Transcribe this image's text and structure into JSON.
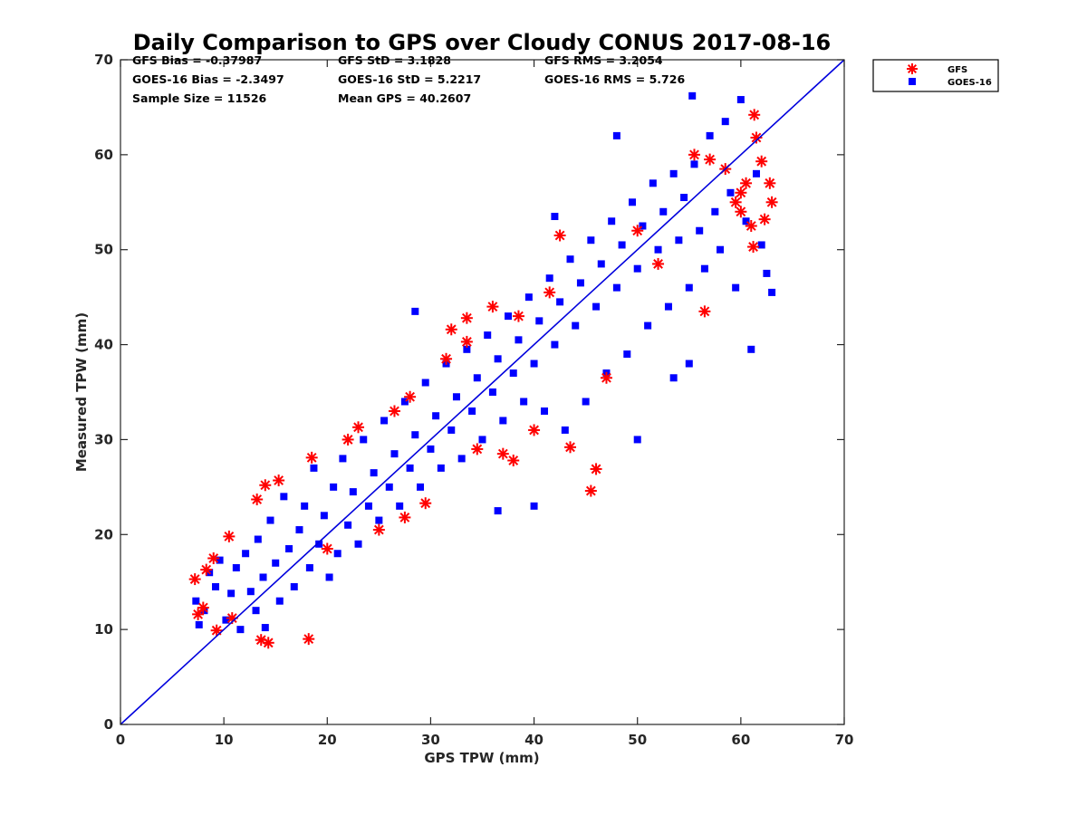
{
  "chart_data": {
    "type": "scatter",
    "title": "Daily Comparison to GPS over Cloudy CONUS 2017-08-16",
    "xlabel": "GPS TPW (mm)",
    "ylabel": "Measured TPW (mm)",
    "xlim": [
      0,
      70
    ],
    "ylim": [
      0,
      70
    ],
    "xticks": [
      "0",
      "10",
      "20",
      "30",
      "40",
      "50",
      "60",
      "70"
    ],
    "yticks": [
      "0",
      "10",
      "20",
      "30",
      "40",
      "50",
      "60",
      "70"
    ],
    "grid": false,
    "legend_position": "top-right outside",
    "stats": [
      [
        "GFS Bias = -0.37987",
        "GFS StD = 3.1828",
        "GFS RMS = 3.2054"
      ],
      [
        "GOES-16 Bias = -2.3497",
        "GOES-16 StD = 5.2217",
        "GOES-16 RMS = 5.726"
      ],
      [
        "Sample Size = 11526",
        "Mean GPS = 40.2607",
        ""
      ]
    ],
    "reference_line": {
      "x": [
        0,
        70
      ],
      "y": [
        0,
        70
      ],
      "color": "#0000dd",
      "label": ""
    },
    "series": [
      {
        "name": "GFS",
        "marker": "asterisk",
        "color": "#ff0000",
        "points": [
          [
            7.2,
            15.3
          ],
          [
            7.5,
            11.6
          ],
          [
            8.0,
            12.3
          ],
          [
            8.3,
            16.3
          ],
          [
            9.0,
            17.5
          ],
          [
            9.3,
            9.9
          ],
          [
            10.5,
            19.8
          ],
          [
            10.8,
            11.2
          ],
          [
            13.2,
            23.7
          ],
          [
            13.6,
            8.9
          ],
          [
            14.0,
            25.2
          ],
          [
            14.3,
            8.6
          ],
          [
            15.3,
            25.7
          ],
          [
            18.2,
            9.0
          ],
          [
            18.5,
            28.1
          ],
          [
            20.0,
            18.5
          ],
          [
            22.0,
            30.0
          ],
          [
            23.0,
            31.3
          ],
          [
            25.0,
            20.5
          ],
          [
            26.5,
            33.0
          ],
          [
            27.5,
            21.8
          ],
          [
            28.0,
            34.5
          ],
          [
            29.5,
            23.3
          ],
          [
            31.5,
            38.5
          ],
          [
            32.0,
            41.6
          ],
          [
            33.5,
            40.3
          ],
          [
            33.5,
            42.8
          ],
          [
            34.5,
            29.0
          ],
          [
            36.0,
            44.0
          ],
          [
            37.0,
            28.5
          ],
          [
            38.0,
            27.8
          ],
          [
            38.5,
            43.0
          ],
          [
            40.0,
            31.0
          ],
          [
            41.5,
            45.5
          ],
          [
            42.5,
            51.5
          ],
          [
            43.5,
            29.2
          ],
          [
            45.5,
            24.6
          ],
          [
            46.0,
            26.9
          ],
          [
            47.0,
            36.5
          ],
          [
            50.0,
            52.0
          ],
          [
            52.0,
            48.5
          ],
          [
            55.5,
            60.0
          ],
          [
            56.5,
            43.5
          ],
          [
            57.0,
            59.5
          ],
          [
            58.5,
            58.5
          ],
          [
            59.5,
            55.0
          ],
          [
            60.0,
            54.0
          ],
          [
            60.5,
            57.0
          ],
          [
            61.0,
            52.5
          ],
          [
            61.3,
            64.2
          ],
          [
            61.5,
            61.8
          ],
          [
            62.0,
            59.3
          ],
          [
            62.3,
            53.2
          ],
          [
            62.8,
            57.0
          ],
          [
            63.0,
            55.0
          ],
          [
            61.2,
            50.3
          ],
          [
            60.0,
            56.0
          ]
        ]
      },
      {
        "name": "GOES-16",
        "marker": "square",
        "color": "#0000ff",
        "points": [
          [
            7.3,
            13.0
          ],
          [
            7.6,
            10.5
          ],
          [
            8.1,
            12.0
          ],
          [
            8.6,
            16.0
          ],
          [
            9.2,
            14.5
          ],
          [
            9.6,
            17.3
          ],
          [
            10.2,
            11.0
          ],
          [
            10.7,
            13.8
          ],
          [
            11.2,
            16.5
          ],
          [
            11.6,
            10.0
          ],
          [
            12.1,
            18.0
          ],
          [
            12.6,
            14.0
          ],
          [
            13.1,
            12.0
          ],
          [
            13.3,
            19.5
          ],
          [
            13.8,
            15.5
          ],
          [
            14.0,
            10.2
          ],
          [
            14.5,
            21.5
          ],
          [
            15.0,
            17.0
          ],
          [
            15.4,
            13.0
          ],
          [
            15.8,
            24.0
          ],
          [
            16.3,
            18.5
          ],
          [
            16.8,
            14.5
          ],
          [
            17.3,
            20.5
          ],
          [
            17.8,
            23.0
          ],
          [
            18.3,
            16.5
          ],
          [
            18.7,
            27.0
          ],
          [
            19.2,
            19.0
          ],
          [
            19.7,
            22.0
          ],
          [
            20.2,
            15.5
          ],
          [
            20.6,
            25.0
          ],
          [
            21.0,
            18.0
          ],
          [
            21.5,
            28.0
          ],
          [
            22.0,
            21.0
          ],
          [
            22.5,
            24.5
          ],
          [
            23.0,
            19.0
          ],
          [
            23.5,
            30.0
          ],
          [
            24.0,
            23.0
          ],
          [
            24.5,
            26.5
          ],
          [
            25.0,
            21.5
          ],
          [
            25.5,
            32.0
          ],
          [
            26.0,
            25.0
          ],
          [
            26.5,
            28.5
          ],
          [
            27.0,
            23.0
          ],
          [
            27.5,
            34.0
          ],
          [
            28.0,
            27.0
          ],
          [
            28.5,
            30.5
          ],
          [
            29.0,
            25.0
          ],
          [
            29.5,
            36.0
          ],
          [
            30.0,
            29.0
          ],
          [
            30.5,
            32.5
          ],
          [
            31.0,
            27.0
          ],
          [
            31.5,
            38.0
          ],
          [
            32.0,
            31.0
          ],
          [
            32.5,
            34.5
          ],
          [
            33.0,
            28.0
          ],
          [
            33.5,
            39.5
          ],
          [
            34.0,
            33.0
          ],
          [
            34.5,
            36.5
          ],
          [
            35.0,
            30.0
          ],
          [
            35.5,
            41.0
          ],
          [
            36.0,
            35.0
          ],
          [
            36.5,
            38.5
          ],
          [
            37.0,
            32.0
          ],
          [
            37.5,
            43.0
          ],
          [
            38.0,
            37.0
          ],
          [
            38.5,
            40.5
          ],
          [
            39.0,
            34.0
          ],
          [
            39.5,
            45.0
          ],
          [
            40.0,
            38.0
          ],
          [
            40.5,
            42.5
          ],
          [
            41.0,
            33.0
          ],
          [
            41.5,
            47.0
          ],
          [
            42.0,
            40.0
          ],
          [
            42.5,
            44.5
          ],
          [
            43.0,
            31.0
          ],
          [
            43.5,
            49.0
          ],
          [
            44.0,
            42.0
          ],
          [
            44.5,
            46.5
          ],
          [
            45.0,
            34.0
          ],
          [
            45.5,
            51.0
          ],
          [
            46.0,
            44.0
          ],
          [
            46.5,
            48.5
          ],
          [
            47.0,
            37.0
          ],
          [
            47.5,
            53.0
          ],
          [
            48.0,
            46.0
          ],
          [
            48.5,
            50.5
          ],
          [
            49.0,
            39.0
          ],
          [
            49.5,
            55.0
          ],
          [
            50.0,
            48.0
          ],
          [
            50.5,
            52.5
          ],
          [
            51.0,
            42.0
          ],
          [
            51.5,
            57.0
          ],
          [
            52.0,
            50.0
          ],
          [
            52.5,
            54.0
          ],
          [
            53.0,
            44.0
          ],
          [
            53.5,
            58.0
          ],
          [
            54.0,
            51.0
          ],
          [
            54.5,
            55.5
          ],
          [
            55.0,
            46.0
          ],
          [
            55.3,
            66.2
          ],
          [
            55.5,
            59.0
          ],
          [
            56.0,
            52.0
          ],
          [
            56.5,
            48.0
          ],
          [
            57.0,
            62.0
          ],
          [
            57.5,
            54.0
          ],
          [
            58.0,
            50.0
          ],
          [
            58.5,
            63.5
          ],
          [
            59.0,
            56.0
          ],
          [
            59.5,
            46.0
          ],
          [
            60.0,
            65.8
          ],
          [
            60.5,
            53.0
          ],
          [
            61.0,
            39.5
          ],
          [
            61.5,
            58.0
          ],
          [
            62.0,
            50.5
          ],
          [
            62.5,
            47.5
          ],
          [
            63.0,
            45.5
          ],
          [
            28.5,
            43.5
          ],
          [
            36.5,
            22.5
          ],
          [
            40.0,
            23.0
          ],
          [
            42.0,
            53.5
          ],
          [
            48.0,
            62.0
          ],
          [
            50.0,
            30.0
          ],
          [
            53.5,
            36.5
          ],
          [
            55.0,
            38.0
          ]
        ]
      }
    ]
  }
}
